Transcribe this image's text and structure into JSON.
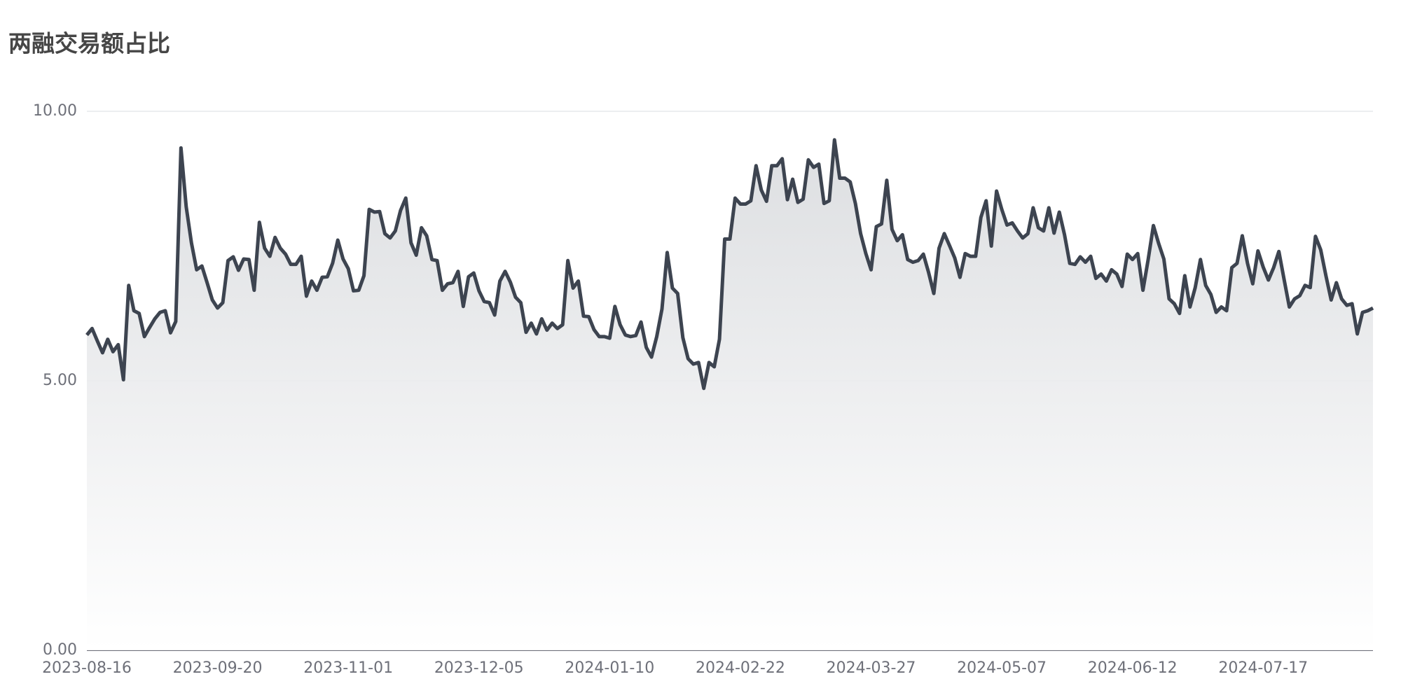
{
  "chart_data": {
    "type": "line",
    "title": "两融交易额占比",
    "area": true,
    "color": "#3d4450",
    "grid": true,
    "categories": [
      "2023-08-16",
      null,
      null,
      null,
      null,
      null,
      null,
      null,
      null,
      null,
      null,
      null,
      null,
      null,
      null,
      null,
      null,
      null,
      null,
      null,
      null,
      null,
      null,
      null,
      null,
      "2023-09-20",
      null,
      null,
      null,
      null,
      null,
      null,
      null,
      null,
      null,
      null,
      null,
      null,
      null,
      null,
      null,
      null,
      null,
      null,
      null,
      null,
      null,
      null,
      null,
      null,
      "2023-11-01",
      null,
      null,
      null,
      null,
      null,
      null,
      null,
      null,
      null,
      null,
      null,
      null,
      null,
      null,
      null,
      null,
      null,
      null,
      null,
      null,
      null,
      null,
      null,
      null,
      "2023-12-05",
      null,
      null,
      null,
      null,
      null,
      null,
      null,
      null,
      null,
      null,
      null,
      null,
      null,
      null,
      null,
      null,
      null,
      null,
      null,
      null,
      null,
      null,
      null,
      null,
      "2024-01-10",
      null,
      null,
      null,
      null,
      null,
      null,
      null,
      null,
      null,
      null,
      null,
      null,
      null,
      null,
      null,
      null,
      null,
      null,
      null,
      null,
      null,
      null,
      null,
      null,
      "2024-02-22",
      null,
      null,
      null,
      null,
      null,
      null,
      null,
      null,
      null,
      null,
      null,
      null,
      null,
      null,
      null,
      null,
      null,
      null,
      null,
      null,
      null,
      null,
      null,
      null,
      "2024-03-27",
      null,
      null,
      null,
      null,
      null,
      null,
      null,
      null,
      null,
      null,
      null,
      null,
      null,
      null,
      null,
      null,
      null,
      null,
      null,
      null,
      null,
      null,
      null,
      null,
      "2024-05-07",
      null,
      null,
      null,
      null,
      null,
      null,
      null,
      null,
      null,
      null,
      null,
      null,
      null,
      null,
      null,
      null,
      null,
      null,
      null,
      null,
      null,
      null,
      null,
      null,
      "2024-06-12",
      null,
      null,
      null,
      null,
      null,
      null,
      null,
      null,
      null,
      null,
      null,
      null,
      null,
      null,
      null,
      null,
      null,
      null,
      null,
      null,
      null,
      null,
      null,
      null,
      "2024-07-17",
      null,
      null,
      null,
      null,
      null,
      null,
      null,
      null,
      null,
      null,
      null,
      null,
      null,
      null,
      null,
      null,
      null,
      null,
      null,
      null,
      null
    ],
    "values": [
      5.85,
      5.97,
      5.74,
      5.52,
      5.77,
      5.54,
      5.67,
      5.02,
      6.77,
      6.3,
      6.25,
      5.82,
      5.99,
      6.15,
      6.27,
      6.3,
      5.89,
      6.1,
      9.32,
      8.23,
      7.56,
      7.06,
      7.13,
      6.82,
      6.5,
      6.35,
      6.45,
      7.23,
      7.3,
      7.05,
      7.26,
      7.25,
      6.68,
      7.94,
      7.46,
      7.31,
      7.66,
      7.46,
      7.35,
      7.16,
      7.16,
      7.31,
      6.57,
      6.85,
      6.68,
      6.92,
      6.93,
      7.18,
      7.61,
      7.26,
      7.08,
      6.67,
      6.68,
      6.95,
      8.18,
      8.13,
      8.14,
      7.73,
      7.65,
      7.78,
      8.16,
      8.39,
      7.56,
      7.33,
      7.84,
      7.69,
      7.25,
      7.23,
      6.68,
      6.8,
      6.82,
      7.03,
      6.38,
      6.93,
      7.0,
      6.67,
      6.47,
      6.45,
      6.22,
      6.85,
      7.03,
      6.83,
      6.55,
      6.45,
      5.9,
      6.07,
      5.87,
      6.15,
      5.94,
      6.07,
      5.97,
      6.04,
      7.23,
      6.72,
      6.85,
      6.2,
      6.19,
      5.95,
      5.82,
      5.82,
      5.79,
      6.38,
      6.04,
      5.85,
      5.82,
      5.84,
      6.09,
      5.62,
      5.44,
      5.82,
      6.33,
      7.38,
      6.72,
      6.62,
      5.8,
      5.41,
      5.31,
      5.34,
      4.86,
      5.34,
      5.26,
      5.77,
      7.63,
      7.63,
      8.39,
      8.28,
      8.28,
      8.34,
      8.99,
      8.54,
      8.33,
      8.99,
      8.99,
      9.12,
      8.36,
      8.74,
      8.31,
      8.37,
      9.1,
      8.96,
      9.02,
      8.29,
      8.34,
      9.47,
      8.76,
      8.76,
      8.69,
      8.29,
      7.73,
      7.36,
      7.06,
      7.86,
      7.91,
      8.72,
      7.81,
      7.6,
      7.71,
      7.25,
      7.2,
      7.23,
      7.35,
      7.01,
      6.62,
      7.46,
      7.73,
      7.51,
      7.28,
      6.92,
      7.36,
      7.31,
      7.31,
      8.03,
      8.34,
      7.5,
      8.52,
      8.18,
      7.89,
      7.93,
      7.78,
      7.65,
      7.73,
      8.21,
      7.84,
      7.78,
      8.21,
      7.74,
      8.13,
      7.71,
      7.18,
      7.16,
      7.3,
      7.2,
      7.31,
      6.9,
      6.98,
      6.85,
      7.06,
      6.98,
      6.75,
      7.35,
      7.25,
      7.36,
      6.68,
      7.25,
      7.88,
      7.55,
      7.26,
      6.52,
      6.43,
      6.25,
      6.95,
      6.37,
      6.73,
      7.25,
      6.77,
      6.6,
      6.27,
      6.37,
      6.3,
      7.1,
      7.18,
      7.69,
      7.18,
      6.8,
      7.41,
      7.11,
      6.87,
      7.1,
      7.4,
      6.88,
      6.37,
      6.52,
      6.58,
      6.77,
      6.73,
      7.68,
      7.43,
      6.95,
      6.5,
      6.82,
      6.52,
      6.4,
      6.43,
      5.87,
      6.27,
      6.3,
      6.35
    ],
    "ylim": [
      0,
      10
    ],
    "yticks": [
      {
        "value": 0,
        "label": "0.00"
      },
      {
        "value": 5,
        "label": "5.00"
      },
      {
        "value": 10,
        "label": "10.00"
      }
    ]
  }
}
